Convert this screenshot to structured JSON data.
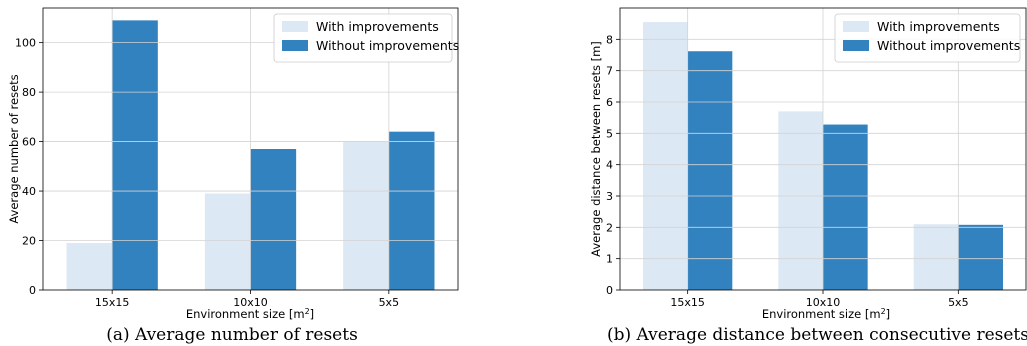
{
  "colors": {
    "with": "#dde8f5",
    "without": "#3282c0",
    "grid": "#d3d3d3"
  },
  "chart_data": [
    {
      "type": "bar",
      "caption": "(a)  Average number of resets",
      "xlabel": "Environment size [m",
      "xlabel_sup": "2",
      "xlabel_end": "]",
      "ylabel": "Average number of resets",
      "categories": [
        "15x15",
        "10x10",
        "5x5"
      ],
      "series": [
        {
          "name": "With improvements",
          "values": [
            19,
            39,
            60
          ]
        },
        {
          "name": "Without improvements",
          "values": [
            109,
            57,
            64
          ]
        }
      ],
      "ylim": [
        0,
        114
      ],
      "yticks": [
        0,
        20,
        40,
        60,
        80,
        100
      ],
      "grid": true,
      "legend": "top-right"
    },
    {
      "type": "bar",
      "caption": "(b)  Average distance between consecutive resets",
      "xlabel": "Environment size [m",
      "xlabel_sup": "2",
      "xlabel_end": "]",
      "ylabel": "Average distance between resets [m]",
      "categories": [
        "15x15",
        "10x10",
        "5x5"
      ],
      "series": [
        {
          "name": "With improvements",
          "values": [
            8.55,
            5.7,
            2.1
          ]
        },
        {
          "name": "Without improvements",
          "values": [
            7.62,
            5.28,
            2.08
          ]
        }
      ],
      "ylim": [
        0,
        9
      ],
      "yticks": [
        0,
        1,
        2,
        3,
        4,
        5,
        6,
        7,
        8
      ],
      "grid": true,
      "legend": "top-right"
    }
  ]
}
